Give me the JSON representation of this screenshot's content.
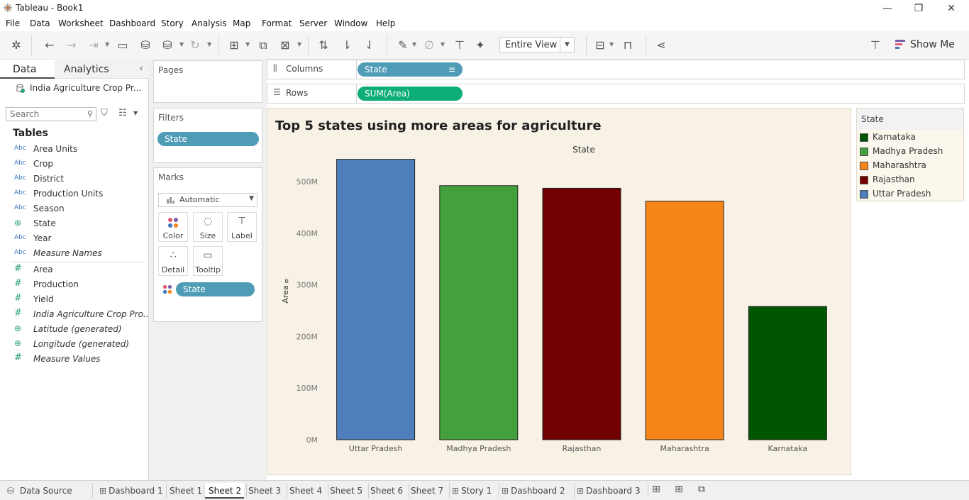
{
  "window": {
    "title": "Tableau - Book1",
    "minimize": "—",
    "restore": "❐",
    "close": "✕"
  },
  "menu": [
    "File",
    "Data",
    "Worksheet",
    "Dashboard",
    "Story",
    "Analysis",
    "Map",
    "Format",
    "Server",
    "Window",
    "Help"
  ],
  "toolbar": {
    "view_select": "Entire View",
    "show_me": "Show Me"
  },
  "left_pane": {
    "tab_data": "Data",
    "tab_analytics": "Analytics",
    "datasource": "India Agriculture Crop Pr...",
    "search_placeholder": "Search",
    "tables_heading": "Tables",
    "dimension_type_label": "Abc",
    "fields": [
      {
        "type": "abc",
        "name": "Area Units"
      },
      {
        "type": "abc",
        "name": "Crop"
      },
      {
        "type": "abc",
        "name": "District"
      },
      {
        "type": "abc",
        "name": "Production Units"
      },
      {
        "type": "abc",
        "name": "Season"
      },
      {
        "type": "geo",
        "name": "State"
      },
      {
        "type": "abc",
        "name": "Year"
      },
      {
        "type": "abc",
        "name": "Measure Names"
      },
      {
        "type": "num",
        "name": "Area"
      },
      {
        "type": "num",
        "name": "Production"
      },
      {
        "type": "num",
        "name": "Yield"
      },
      {
        "type": "num",
        "name": "India Agriculture Crop Pro..."
      },
      {
        "type": "geo",
        "name": "Latitude (generated)"
      },
      {
        "type": "geo",
        "name": "Longitude (generated)"
      },
      {
        "type": "num",
        "name": "Measure Values"
      }
    ]
  },
  "shelves": {
    "pages": "Pages",
    "filters": "Filters",
    "filter_pill": "State",
    "marks": "Marks",
    "mark_type": "Automatic",
    "mark_buttons": [
      "Color",
      "Size",
      "Label",
      "Detail",
      "Tooltip"
    ],
    "marks_pill": "State",
    "columns_label": "Columns",
    "columns_pill": "State",
    "rows_label": "Rows",
    "rows_pill": "SUM(Area)"
  },
  "legend": {
    "title": "State",
    "items": [
      {
        "name": "Karnataka",
        "color": "#005600"
      },
      {
        "name": "Madhya Pradesh",
        "color": "#44a03c"
      },
      {
        "name": "Maharashtra",
        "color": "#f58518"
      },
      {
        "name": "Rajasthan",
        "color": "#720000"
      },
      {
        "name": "Uttar Pradesh",
        "color": "#4e7ebc"
      }
    ]
  },
  "chart_data": {
    "type": "bar",
    "title": "Top 5 states using more areas for agriculture",
    "xlabel": "State",
    "ylabel": "Area",
    "categories": [
      "Uttar Pradesh",
      "Madhya Pradesh",
      "Rajasthan",
      "Maharashtra",
      "Karnataka"
    ],
    "values": [
      543000000,
      492000000,
      487000000,
      462000000,
      258000000
    ],
    "colors": [
      "#4e7ebc",
      "#44a03c",
      "#720000",
      "#f58518",
      "#005600"
    ],
    "ylim": [
      0,
      570000000
    ],
    "yticks": [
      0,
      100000000,
      200000000,
      300000000,
      400000000,
      500000000
    ],
    "ytick_labels": [
      "0M",
      "100M",
      "200M",
      "300M",
      "400M",
      "500M"
    ],
    "background": "#f7f2e5"
  },
  "bottom_tabs": {
    "data_source": "Data Source",
    "tabs": [
      "Dashboard 1",
      "Sheet 1",
      "Sheet 2",
      "Sheet 3",
      "Sheet 4",
      "Sheet 5",
      "Sheet 6",
      "Sheet 7",
      "Story 1",
      "Dashboard 2",
      "Dashboard 3"
    ],
    "active": "Sheet 2"
  }
}
